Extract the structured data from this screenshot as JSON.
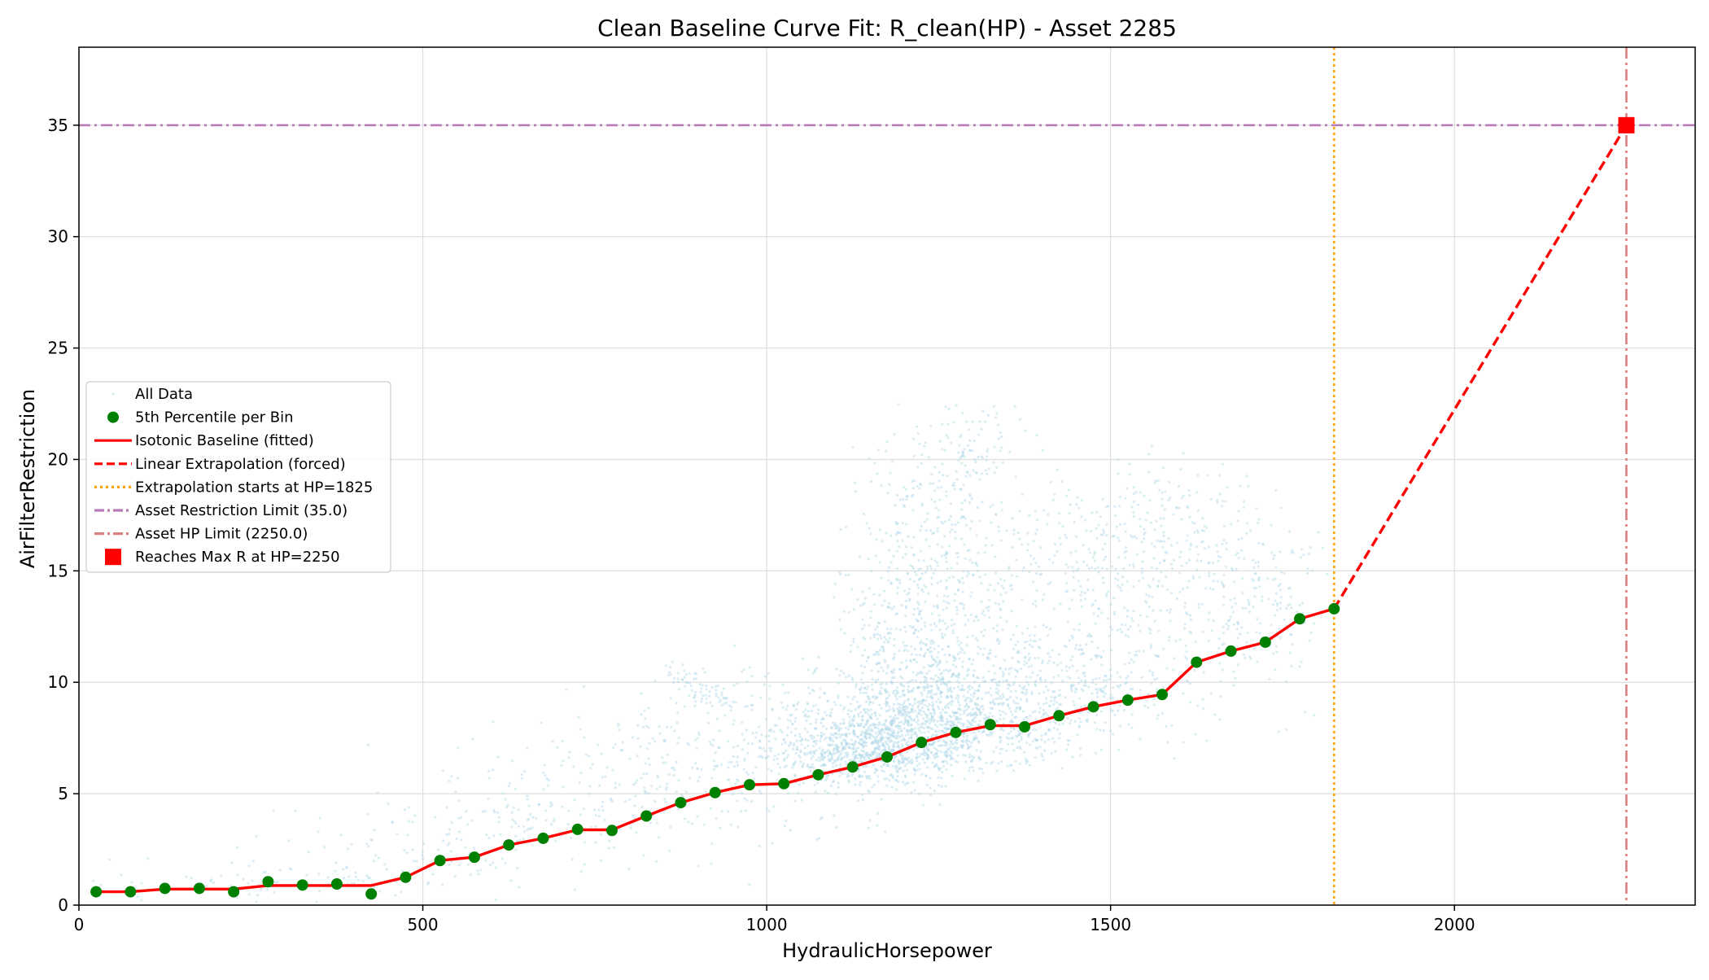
{
  "chart_data": {
    "type": "scatter",
    "title": "Clean Baseline Curve Fit: R_clean(HP) - Asset 2285",
    "xlabel": "HydraulicHorsepower",
    "ylabel": "AirFilterRestriction",
    "xlim": [
      0,
      2350
    ],
    "ylim": [
      0,
      38.5
    ],
    "xticks": [
      0,
      500,
      1000,
      1500,
      2000
    ],
    "yticks": [
      0,
      5,
      10,
      15,
      20,
      25,
      30,
      35
    ],
    "grid": true,
    "legend_position": "center-left",
    "legend": [
      {
        "label": "All Data",
        "kind": "scatter-faint",
        "color": "#add8e6"
      },
      {
        "label": "5th Percentile per Bin",
        "kind": "marker-circle",
        "color": "#008000"
      },
      {
        "label": "Isotonic Baseline (fitted)",
        "kind": "line-solid",
        "color": "#ff0000"
      },
      {
        "label": "Linear Extrapolation (forced)",
        "kind": "line-dashed",
        "color": "#ff0000"
      },
      {
        "label": "Extrapolation starts at HP=1825",
        "kind": "line-dotted",
        "color": "#ffa500"
      },
      {
        "label": "Asset Restriction Limit (35.0)",
        "kind": "line-dashdot",
        "color": "#b87bb8"
      },
      {
        "label": "Asset HP Limit (2250.0)",
        "kind": "line-dashdot",
        "color": "#d98080"
      },
      {
        "label": "Reaches Max R at HP=2250",
        "kind": "marker-square",
        "color": "#ff0000"
      }
    ],
    "percentile_points": {
      "x": [
        25,
        75,
        125,
        175,
        225,
        275,
        325,
        375,
        425,
        475,
        525,
        575,
        625,
        675,
        725,
        775,
        825,
        875,
        925,
        975,
        1025,
        1075,
        1125,
        1175,
        1225,
        1275,
        1325,
        1375,
        1425,
        1475,
        1525,
        1575,
        1625,
        1675,
        1725,
        1775,
        1825
      ],
      "y": [
        0.6,
        0.6,
        0.75,
        0.75,
        0.6,
        1.05,
        0.9,
        0.95,
        0.5,
        1.25,
        2.0,
        2.15,
        2.7,
        3.0,
        3.4,
        3.35,
        4.0,
        4.6,
        5.05,
        5.4,
        5.45,
        5.85,
        6.2,
        6.65,
        7.3,
        7.75,
        8.1,
        8.0,
        8.5,
        8.9,
        9.2,
        9.45,
        10.9,
        11.4,
        11.8,
        12.85,
        13.3
      ]
    },
    "isotonic_baseline": {
      "x": [
        25,
        75,
        125,
        175,
        225,
        275,
        325,
        375,
        425,
        475,
        525,
        575,
        625,
        675,
        725,
        775,
        825,
        875,
        925,
        975,
        1025,
        1075,
        1125,
        1175,
        1225,
        1275,
        1325,
        1375,
        1425,
        1475,
        1525,
        1575,
        1625,
        1675,
        1725,
        1775,
        1825
      ],
      "y": [
        0.6,
        0.6,
        0.72,
        0.72,
        0.72,
        0.88,
        0.88,
        0.88,
        0.88,
        1.25,
        2.0,
        2.15,
        2.7,
        3.0,
        3.38,
        3.38,
        4.0,
        4.6,
        5.05,
        5.4,
        5.45,
        5.85,
        6.2,
        6.65,
        7.3,
        7.75,
        8.05,
        8.05,
        8.5,
        8.9,
        9.2,
        9.45,
        10.9,
        11.4,
        11.8,
        12.85,
        13.3
      ]
    },
    "linear_extrapolation": {
      "x": [
        1825,
        2250
      ],
      "y": [
        13.3,
        35.0
      ]
    },
    "extrapolation_start_hp": 1825,
    "restriction_limit": 35.0,
    "hp_limit": 2250.0,
    "max_point": {
      "x": 2250,
      "y": 35.0
    },
    "all_data_clusters": [
      {
        "x": 1150,
        "y": 7.0,
        "sx": 60,
        "sy": 0.8,
        "n": 700
      },
      {
        "x": 1250,
        "y": 8.0,
        "sx": 90,
        "sy": 1.0,
        "n": 700
      },
      {
        "x": 1350,
        "y": 9.5,
        "sx": 110,
        "sy": 1.2,
        "n": 500
      },
      {
        "x": 1220,
        "y": 11.5,
        "sx": 55,
        "sy": 2.2,
        "n": 450
      },
      {
        "x": 1260,
        "y": 17.0,
        "sx": 60,
        "sy": 2.3,
        "n": 300
      },
      {
        "x": 1300,
        "y": 21.0,
        "sx": 50,
        "sy": 0.8,
        "n": 60
      },
      {
        "x": 1500,
        "y": 12.5,
        "sx": 120,
        "sy": 2.2,
        "n": 450
      },
      {
        "x": 1550,
        "y": 17.0,
        "sx": 90,
        "sy": 1.5,
        "n": 250
      },
      {
        "x": 1720,
        "y": 14.0,
        "sx": 50,
        "sy": 1.6,
        "n": 150
      },
      {
        "x": 1050,
        "y": 7.5,
        "sx": 120,
        "sy": 1.6,
        "n": 250
      },
      {
        "x": 900,
        "y": 6.0,
        "sx": 130,
        "sy": 1.8,
        "n": 220
      },
      {
        "x": 700,
        "y": 4.5,
        "sx": 110,
        "sy": 1.4,
        "n": 150
      },
      {
        "x": 500,
        "y": 2.5,
        "sx": 110,
        "sy": 1.1,
        "n": 110
      },
      {
        "x": 250,
        "y": 1.0,
        "sx": 120,
        "sy": 0.5,
        "n": 60
      },
      {
        "x": 880,
        "y": 10.4,
        "sx": 15,
        "sy": 0.3,
        "n": 30
      },
      {
        "x": 920,
        "y": 9.4,
        "sx": 20,
        "sy": 0.4,
        "n": 40
      }
    ]
  }
}
